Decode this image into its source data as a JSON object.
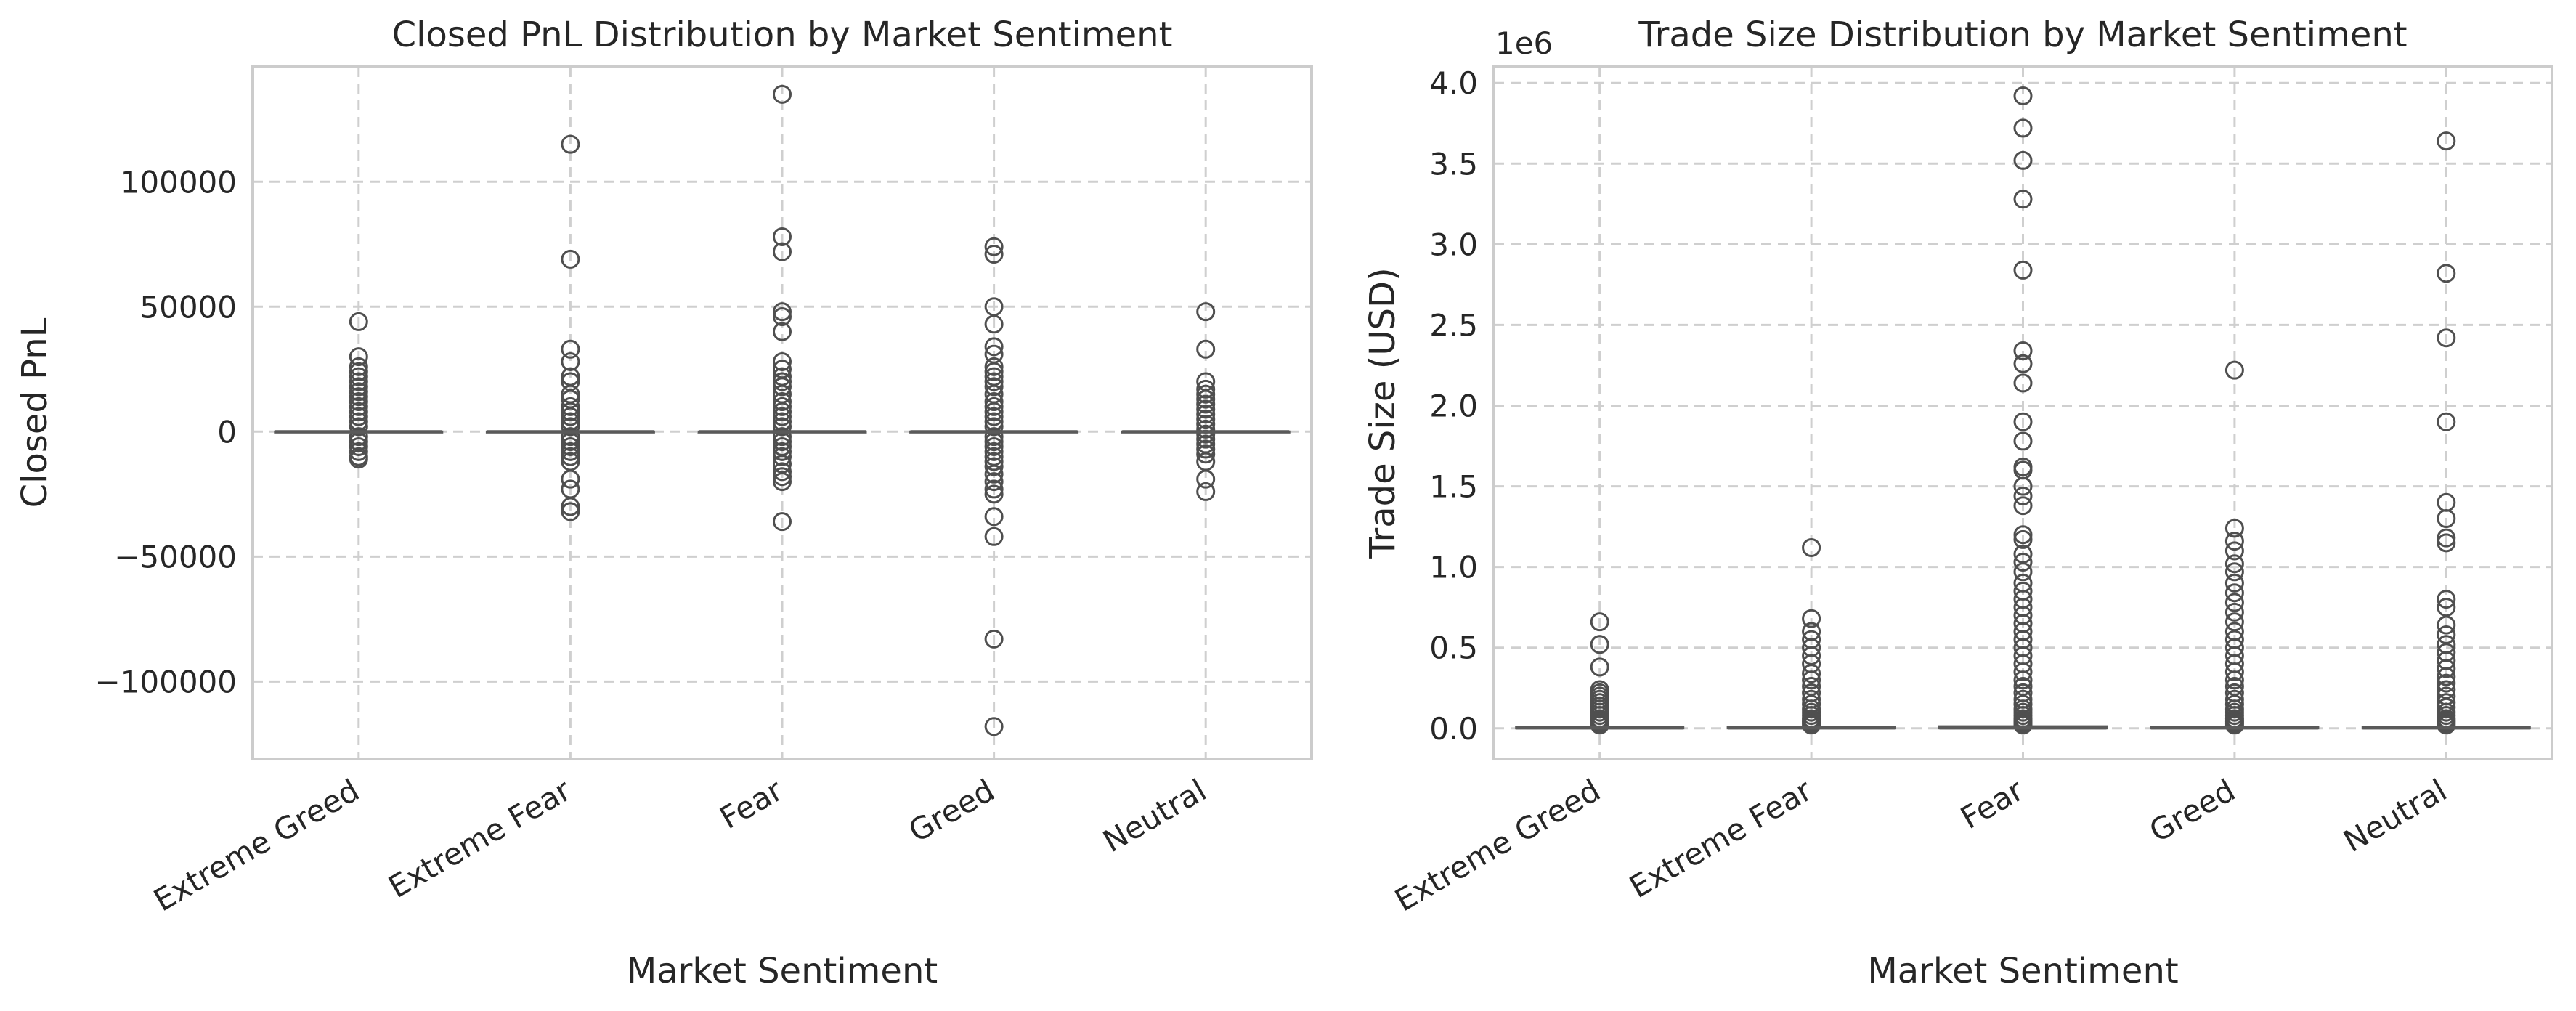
{
  "chart_data": [
    {
      "type": "box",
      "title": "Closed PnL Distribution by Market Sentiment",
      "xlabel": "Market Sentiment",
      "ylabel": "Closed PnL",
      "categories": [
        "Extreme Greed",
        "Extreme Fear",
        "Fear",
        "Greed",
        "Neutral"
      ],
      "ylim": [
        -131000,
        146000
      ],
      "yticks": [
        -100000,
        -50000,
        0,
        50000,
        100000
      ],
      "ytick_labels": [
        "−100000",
        "−50000",
        "0",
        "50000",
        "100000"
      ],
      "offset_text": "",
      "grid": true,
      "series": [
        {
          "category": "Extreme Greed",
          "median": 0,
          "q1": 0,
          "q3": 0,
          "outliers": [
            44000,
            30000,
            26000,
            24000,
            22000,
            20000,
            18000,
            16000,
            14000,
            12000,
            10000,
            8000,
            6000,
            4000,
            2000,
            -2000,
            -4000,
            -6000,
            -8000,
            -10000,
            -11000
          ]
        },
        {
          "category": "Extreme Fear",
          "median": 0,
          "q1": 0,
          "q3": 0,
          "outliers": [
            115000,
            69000,
            33000,
            28000,
            22000,
            20000,
            15000,
            13000,
            10000,
            8000,
            6000,
            4000,
            2000,
            -2000,
            -4000,
            -6000,
            -8000,
            -10000,
            -12000,
            -19000,
            -23000,
            -30000,
            -32000
          ]
        },
        {
          "category": "Fear",
          "median": 0,
          "q1": 0,
          "q3": 0,
          "outliers": [
            135000,
            78000,
            72000,
            48000,
            46000,
            40000,
            28000,
            25000,
            22000,
            20000,
            18000,
            15000,
            12000,
            10000,
            8000,
            6000,
            4000,
            2000,
            -2000,
            -4000,
            -6000,
            -8000,
            -10000,
            -13000,
            -16000,
            -18000,
            -20000,
            -36000
          ]
        },
        {
          "category": "Greed",
          "median": 0,
          "q1": 0,
          "q3": 0,
          "outliers": [
            74000,
            71000,
            50000,
            43000,
            34000,
            31000,
            26000,
            24000,
            22000,
            20000,
            18000,
            15000,
            12000,
            10000,
            8000,
            6000,
            4000,
            2000,
            -2000,
            -4000,
            -6000,
            -8000,
            -10000,
            -12000,
            -14000,
            -17000,
            -20000,
            -23000,
            -25000,
            -34000,
            -42000,
            -83000,
            -118000
          ]
        },
        {
          "category": "Neutral",
          "median": 0,
          "q1": 0,
          "q3": 0,
          "outliers": [
            48000,
            33000,
            20000,
            17000,
            15000,
            13000,
            11000,
            9000,
            7000,
            5000,
            3000,
            1000,
            -1000,
            -3000,
            -5000,
            -7000,
            -9000,
            -12000,
            -19000,
            -24000
          ]
        }
      ]
    },
    {
      "type": "box",
      "title": "Trade Size Distribution by Market Sentiment",
      "xlabel": "Market Sentiment",
      "ylabel": "Trade Size (USD)",
      "categories": [
        "Extreme Greed",
        "Extreme Fear",
        "Fear",
        "Greed",
        "Neutral"
      ],
      "ylim": [
        -0.19,
        4.1
      ],
      "yticks": [
        0,
        0.5,
        1.0,
        1.5,
        2.0,
        2.5,
        3.0,
        3.5,
        4.0
      ],
      "ytick_labels": [
        "0.0",
        "0.5",
        "1.0",
        "1.5",
        "2.0",
        "2.5",
        "3.0",
        "3.5",
        "4.0"
      ],
      "offset_text": "1e6",
      "grid": true,
      "series": [
        {
          "category": "Extreme Greed",
          "median": 0.002,
          "q1": 0.0005,
          "q3": 0.008,
          "outliers": [
            0.66,
            0.52,
            0.38,
            0.24,
            0.22,
            0.2,
            0.18,
            0.16,
            0.14,
            0.12,
            0.1,
            0.08,
            0.06,
            0.05,
            0.04,
            0.03,
            0.02
          ]
        },
        {
          "category": "Extreme Fear",
          "median": 0.002,
          "q1": 0.0005,
          "q3": 0.01,
          "outliers": [
            1.12,
            0.68,
            0.6,
            0.55,
            0.5,
            0.45,
            0.4,
            0.34,
            0.3,
            0.26,
            0.22,
            0.18,
            0.15,
            0.12,
            0.1,
            0.08,
            0.06,
            0.05,
            0.04,
            0.03,
            0.02
          ]
        },
        {
          "category": "Fear",
          "median": 0.002,
          "q1": 0.0005,
          "q3": 0.012,
          "outliers": [
            3.92,
            3.72,
            3.52,
            3.28,
            2.84,
            2.34,
            2.26,
            2.14,
            1.9,
            1.78,
            1.62,
            1.6,
            1.5,
            1.44,
            1.38,
            1.2,
            1.17,
            1.08,
            1.03,
            0.97,
            0.9,
            0.85,
            0.8,
            0.75,
            0.7,
            0.65,
            0.6,
            0.55,
            0.5,
            0.45,
            0.4,
            0.35,
            0.3,
            0.26,
            0.22,
            0.18,
            0.15,
            0.12,
            0.1,
            0.08,
            0.06,
            0.05,
            0.04,
            0.03,
            0.02
          ]
        },
        {
          "category": "Greed",
          "median": 0.002,
          "q1": 0.0005,
          "q3": 0.01,
          "outliers": [
            2.22,
            1.24,
            1.16,
            1.1,
            1.02,
            0.97,
            0.9,
            0.84,
            0.78,
            0.72,
            0.66,
            0.6,
            0.55,
            0.5,
            0.45,
            0.4,
            0.35,
            0.3,
            0.26,
            0.22,
            0.18,
            0.15,
            0.12,
            0.1,
            0.08,
            0.06,
            0.05,
            0.04,
            0.03,
            0.02
          ]
        },
        {
          "category": "Neutral",
          "median": 0.002,
          "q1": 0.0005,
          "q3": 0.01,
          "outliers": [
            3.64,
            2.82,
            2.42,
            1.9,
            1.4,
            1.3,
            1.18,
            1.15,
            0.8,
            0.75,
            0.64,
            0.58,
            0.52,
            0.47,
            0.42,
            0.37,
            0.32,
            0.28,
            0.24,
            0.2,
            0.16,
            0.13,
            0.1,
            0.08,
            0.06,
            0.05,
            0.04,
            0.03,
            0.02
          ]
        }
      ]
    }
  ],
  "colors": {
    "grid": "#cfcfcf",
    "spine": "#cccccc",
    "box_face": "#ffffff",
    "box_edge": "#5a5a5a",
    "outlier_edge": "#4f4f4f",
    "text": "#262626"
  }
}
